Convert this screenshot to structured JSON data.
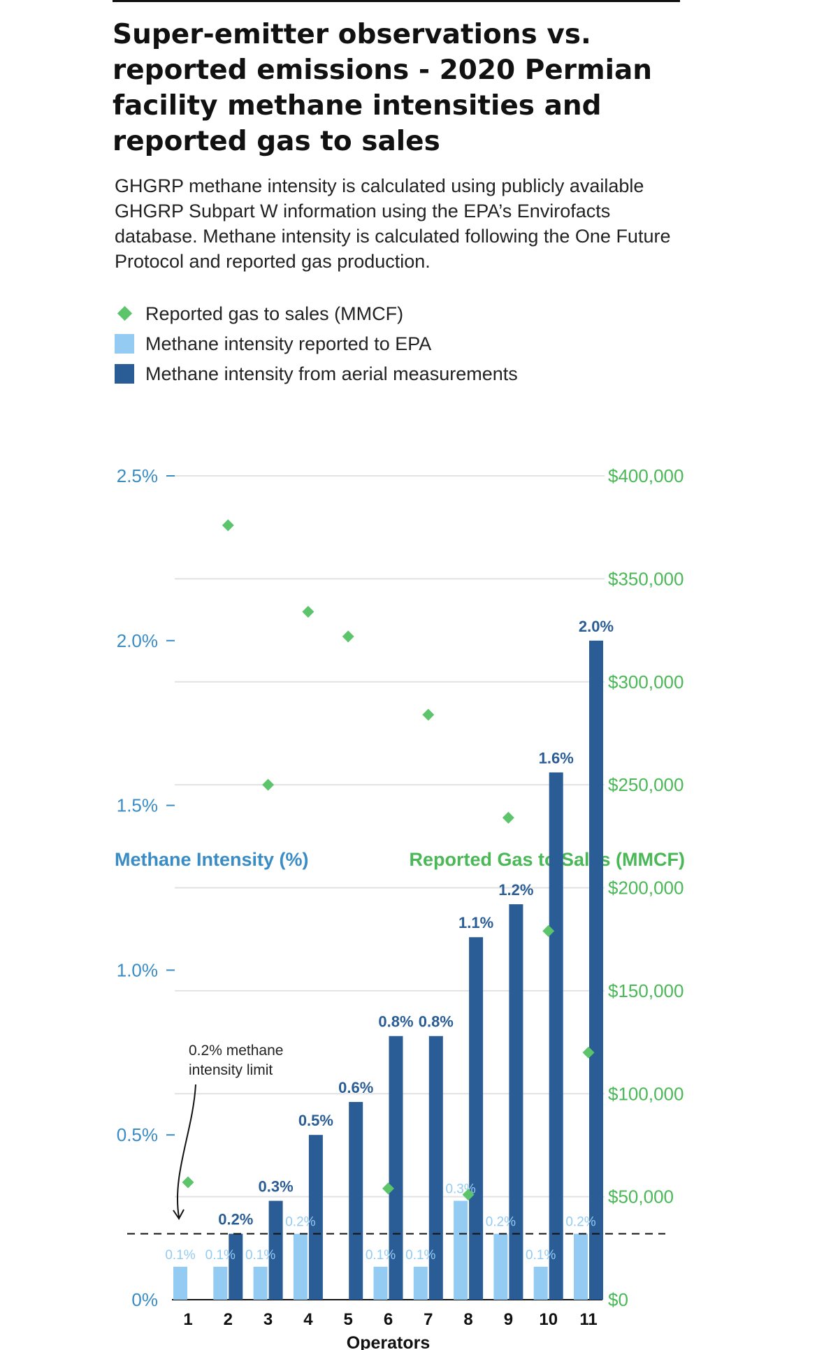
{
  "title": "Super-emitter observations vs. reported emissions - 2020 Permian facility methane intensities and reported gas to sales",
  "subtitle": "GHGRP methane intensity is calculated using publicly available GHGRP Subpart W information using the EPA’s Envirofacts database. Methane intensity is calculated following the One Future Protocol and reported gas production.",
  "legend": [
    {
      "label": "Reported gas to sales (MMCF)",
      "shape": "diamond",
      "color": "#5cc46b"
    },
    {
      "label": "Methane intensity reported to EPA",
      "shape": "square",
      "color": "#93cbf2"
    },
    {
      "label": "Methane intensity from aerial measurements",
      "shape": "square",
      "color": "#2a5c96"
    }
  ],
  "colors": {
    "epa": "#93cbf2",
    "aerial": "#2a5c96",
    "gas": "#5cc46b",
    "left_axis": "#3a8cc4",
    "right_axis": "#4bb858",
    "grid": "#e2e2e2"
  },
  "annotation": {
    "line1": "0.2% methane",
    "line2": "intensity limit",
    "value": 0.2
  },
  "chart_data": {
    "type": "bar",
    "xlabel": "Operators",
    "ylabel": "Methane Intensity (%)",
    "y2label": "Reported Gas to Sales (MMCF)",
    "categories": [
      "1",
      "2",
      "3",
      "4",
      "5",
      "6",
      "7",
      "8",
      "9",
      "10",
      "11"
    ],
    "ylim": [
      0,
      2.5
    ],
    "y_ticks": [
      0,
      0.5,
      1.0,
      1.5,
      2.0,
      2.5
    ],
    "y_tick_labels": [
      "0%",
      "0.5%",
      "1.0%",
      "1.5%",
      "2.0%",
      "2.5%"
    ],
    "y2lim": [
      0,
      400000
    ],
    "y2_ticks": [
      0,
      50000,
      100000,
      150000,
      200000,
      250000,
      300000,
      350000,
      400000
    ],
    "y2_tick_labels": [
      "$0",
      "$50,000",
      "$100,000",
      "$150,000",
      "$200,000",
      "$250,000",
      "$300,000",
      "$350,000",
      "$400,000"
    ],
    "series": [
      {
        "name": "Methane intensity reported to EPA",
        "type": "bar",
        "values": [
          0.1,
          0.1,
          0.1,
          0.2,
          null,
          0.1,
          0.1,
          0.3,
          0.2,
          0.1,
          0.2
        ],
        "labels": [
          "0.1%",
          "0.1%",
          "0.1%",
          "0.2%",
          "",
          "0.1%",
          "0.1%",
          "0.3%",
          "0.2%",
          "0.1%",
          "0.2%"
        ]
      },
      {
        "name": "Methane intensity from aerial measurements",
        "type": "bar",
        "values": [
          null,
          0.2,
          0.3,
          0.5,
          0.6,
          0.8,
          0.8,
          1.1,
          1.2,
          1.6,
          2.0
        ],
        "labels": [
          "",
          "0.2%",
          "0.3%",
          "0.5%",
          "0.6%",
          "0.8%",
          "0.8%",
          "1.1%",
          "1.2%",
          "1.6%",
          "2.0%"
        ]
      },
      {
        "name": "Reported gas to sales (MMCF)",
        "type": "scatter",
        "axis": "y2",
        "values": [
          57000,
          376000,
          250000,
          334000,
          322000,
          54000,
          284000,
          51000,
          234000,
          179000,
          120000
        ]
      }
    ],
    "grid": true,
    "legend_position": "top-left"
  }
}
